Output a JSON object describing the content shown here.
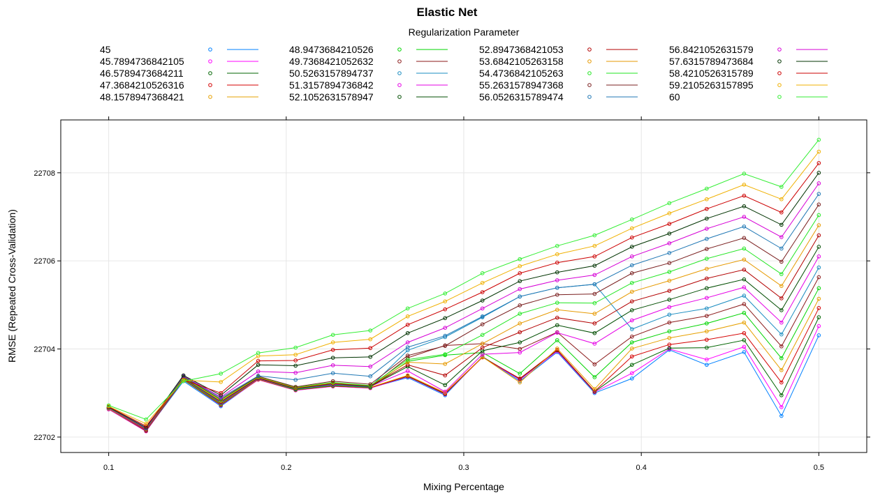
{
  "chart_data": {
    "type": "line",
    "title": "Elastic Net",
    "legend_title": "Regularization Parameter",
    "legend_position": "top",
    "grid": true,
    "xlabel": "Mixing Percentage",
    "ylabel": "RMSE (Repeated Cross-Validation)",
    "xlim": [
      0.073,
      0.527
    ],
    "ylim": [
      22701.65,
      22709.2
    ],
    "x_ticks": [
      0.1,
      0.2,
      0.3,
      0.4,
      0.5
    ],
    "y_ticks": [
      22702,
      22704,
      22706,
      22708
    ],
    "x": [
      0.1,
      0.1210526,
      0.1421053,
      0.1631579,
      0.1842105,
      0.2052632,
      0.2263158,
      0.2473684,
      0.2684211,
      0.2894737,
      0.3105263,
      0.3315789,
      0.3526316,
      0.3736842,
      0.3947368,
      0.4157895,
      0.4368421,
      0.4578947,
      0.4789474,
      0.5
    ],
    "series": [
      {
        "name": "45",
        "color": "#0080ff",
        "values": [
          22702.63,
          22702.14,
          22703.27,
          22702.7,
          22703.31,
          22703.08,
          22703.17,
          22703.12,
          22703.35,
          22702.95,
          22703.83,
          22703.27,
          22703.93,
          22703.0,
          22703.33,
          22703.98,
          22703.64,
          22703.93,
          22702.48,
          22704.31
        ]
      },
      {
        "name": "45.7894736842105",
        "color": "#ff00ff",
        "values": [
          22702.63,
          22702.13,
          22703.3,
          22702.72,
          22703.3,
          22703.06,
          22703.15,
          22703.11,
          22703.37,
          22702.97,
          22703.82,
          22703.3,
          22703.95,
          22703.02,
          22703.45,
          22704.0,
          22703.76,
          22704.05,
          22702.68,
          22704.52
        ]
      },
      {
        "name": "46.5789473684211",
        "color": "#006400",
        "values": [
          22702.64,
          22702.14,
          22703.3,
          22702.73,
          22703.31,
          22703.07,
          22703.16,
          22703.12,
          22703.38,
          22702.98,
          22703.82,
          22703.32,
          22703.97,
          22703.03,
          22703.64,
          22704.02,
          22704.03,
          22704.2,
          22702.95,
          22704.72
        ]
      },
      {
        "name": "47.3684210526316",
        "color": "#d40000",
        "values": [
          22702.64,
          22702.14,
          22703.31,
          22702.74,
          22703.31,
          22703.07,
          22703.16,
          22703.12,
          22703.39,
          22702.99,
          22703.81,
          22703.33,
          22703.98,
          22703.04,
          22703.83,
          22704.1,
          22704.21,
          22704.36,
          22703.24,
          22704.93
        ]
      },
      {
        "name": "48.1578947368421",
        "color": "#e6a000",
        "values": [
          22702.64,
          22702.15,
          22703.31,
          22702.75,
          22703.31,
          22703.08,
          22703.17,
          22703.13,
          22703.4,
          22703.01,
          22703.82,
          22703.24,
          22704.01,
          22703.09,
          22704.01,
          22704.25,
          22704.4,
          22704.6,
          22703.52,
          22705.14
        ]
      },
      {
        "name": "48.9473684210526",
        "color": "#00d400",
        "values": [
          22702.65,
          22702.15,
          22703.32,
          22702.76,
          22703.32,
          22703.08,
          22703.17,
          22703.13,
          22703.72,
          22703.86,
          22703.92,
          22703.44,
          22704.2,
          22703.36,
          22704.15,
          22704.4,
          22704.58,
          22704.82,
          22703.79,
          22705.38
        ]
      },
      {
        "name": "49.7368421052632",
        "color": "#8b1a1a",
        "values": [
          22702.65,
          22702.15,
          22703.32,
          22702.77,
          22703.32,
          22703.09,
          22703.18,
          22703.14,
          22703.8,
          22704.08,
          22704.12,
          22704.0,
          22704.38,
          22703.65,
          22704.28,
          22704.6,
          22704.75,
          22705.02,
          22704.06,
          22705.63
        ]
      },
      {
        "name": "50.5263157894737",
        "color": "#1a8cc0",
        "values": [
          22702.65,
          22702.16,
          22703.33,
          22702.78,
          22703.33,
          22703.09,
          22703.19,
          22703.14,
          22703.97,
          22704.27,
          22704.72,
          22705.19,
          22705.39,
          22705.47,
          22704.45,
          22704.78,
          22704.92,
          22705.21,
          22704.33,
          22705.85
        ]
      },
      {
        "name": "51.3157894736842",
        "color": "#e600e6",
        "values": [
          22702.65,
          22702.16,
          22703.34,
          22702.79,
          22703.33,
          22703.1,
          22703.2,
          22703.15,
          22703.5,
          22703.03,
          22703.88,
          22703.92,
          22704.37,
          22704.12,
          22704.65,
          22704.95,
          22705.16,
          22705.4,
          22704.6,
          22706.1
        ]
      },
      {
        "name": "52.1052631578947",
        "color": "#004d00",
        "values": [
          22702.66,
          22702.17,
          22703.34,
          22702.8,
          22703.34,
          22703.1,
          22703.21,
          22703.15,
          22703.6,
          22703.18,
          22703.96,
          22704.15,
          22704.54,
          22704.36,
          22704.88,
          22705.12,
          22705.38,
          22705.58,
          22704.88,
          22706.32
        ]
      },
      {
        "name": "52.8947368421053",
        "color": "#b30000",
        "values": [
          22702.66,
          22702.17,
          22703.35,
          22702.81,
          22703.35,
          22703.11,
          22703.22,
          22703.16,
          22703.64,
          22703.4,
          22704.03,
          22704.38,
          22704.71,
          22704.58,
          22705.08,
          22705.32,
          22705.6,
          22705.8,
          22705.15,
          22706.58
        ]
      },
      {
        "name": "53.6842105263158",
        "color": "#e69900",
        "values": [
          22702.66,
          22702.18,
          22703.35,
          22702.82,
          22703.36,
          22703.12,
          22703.23,
          22703.17,
          22703.7,
          22703.66,
          22704.12,
          22704.58,
          22704.89,
          22704.8,
          22705.3,
          22705.55,
          22705.82,
          22706.03,
          22705.43,
          22706.81
        ]
      },
      {
        "name": "54.4736842105263",
        "color": "#22e622",
        "values": [
          22702.67,
          22702.19,
          22703.36,
          22702.84,
          22703.37,
          22703.13,
          22703.24,
          22703.17,
          22703.76,
          22703.88,
          22704.32,
          22704.8,
          22705.05,
          22705.04,
          22705.5,
          22705.75,
          22706.05,
          22706.28,
          22705.7,
          22707.04
        ]
      },
      {
        "name": "55.2631578947368",
        "color": "#7a1f1f",
        "values": [
          22702.67,
          22702.19,
          22703.37,
          22702.86,
          22703.38,
          22703.14,
          22703.27,
          22703.2,
          22703.85,
          22704.07,
          22704.56,
          22704.99,
          22705.23,
          22705.25,
          22705.72,
          22705.95,
          22706.27,
          22706.52,
          22705.98,
          22707.28
        ]
      },
      {
        "name": "56.0526315789474",
        "color": "#1f77b4",
        "values": [
          22702.67,
          22702.2,
          22703.38,
          22702.89,
          22703.39,
          22703.3,
          22703.45,
          22703.38,
          22704.04,
          22704.3,
          22704.74,
          22705.19,
          22705.39,
          22705.47,
          22705.9,
          22706.18,
          22706.5,
          22706.78,
          22706.28,
          22707.52
        ]
      },
      {
        "name": "56.8421052631579",
        "color": "#d600d6",
        "values": [
          22702.68,
          22702.21,
          22703.39,
          22702.91,
          22703.49,
          22703.46,
          22703.63,
          22703.6,
          22704.15,
          22704.48,
          22704.92,
          22705.36,
          22705.56,
          22705.68,
          22706.1,
          22706.4,
          22706.73,
          22707.0,
          22706.54,
          22707.76
        ]
      },
      {
        "name": "57.6315789473684",
        "color": "#003300",
        "values": [
          22702.68,
          22702.22,
          22703.4,
          22702.95,
          22703.64,
          22703.62,
          22703.8,
          22703.82,
          22704.36,
          22704.7,
          22705.1,
          22705.54,
          22705.74,
          22705.89,
          22706.32,
          22706.62,
          22706.96,
          22707.24,
          22706.82,
          22708.0
        ]
      },
      {
        "name": "58.4210526315789",
        "color": "#cc0000",
        "values": [
          22702.69,
          22702.25,
          22703.3,
          22703.0,
          22703.73,
          22703.74,
          22703.98,
          22704.02,
          22704.55,
          22704.9,
          22705.29,
          22705.72,
          22705.96,
          22706.1,
          22706.53,
          22706.84,
          22707.18,
          22707.48,
          22707.1,
          22708.22
        ]
      },
      {
        "name": "59.2105263157895",
        "color": "#f0b000",
        "values": [
          22702.7,
          22702.3,
          22703.29,
          22703.25,
          22703.84,
          22703.87,
          22704.15,
          22704.22,
          22704.74,
          22705.08,
          22705.5,
          22705.88,
          22706.15,
          22706.34,
          22706.74,
          22707.08,
          22707.4,
          22707.73,
          22707.4,
          22708.48
        ]
      },
      {
        "name": "60",
        "color": "#33ee33",
        "values": [
          22702.72,
          22702.4,
          22703.27,
          22703.44,
          22703.91,
          22704.03,
          22704.32,
          22704.42,
          22704.92,
          22705.26,
          22705.72,
          22706.04,
          22706.34,
          22706.58,
          22706.94,
          22707.31,
          22707.64,
          22707.98,
          22707.68,
          22708.75
        ]
      }
    ]
  }
}
